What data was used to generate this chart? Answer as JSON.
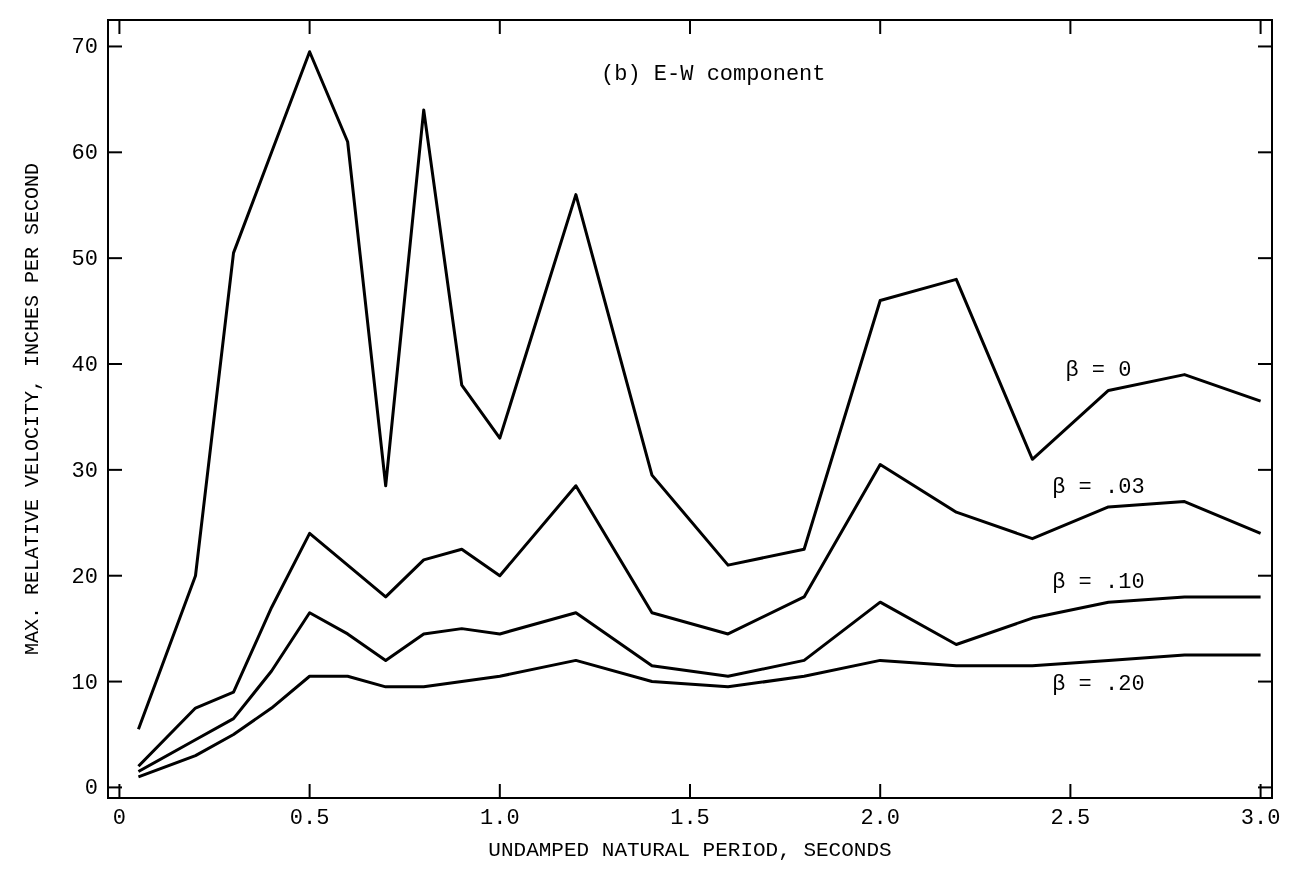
{
  "chart_data": {
    "type": "line",
    "xlabel": "UNDAMPED NATURAL PERIOD, SECONDS",
    "ylabel": "MAX. RELATIVE VELOCITY, INCHES PER SECOND",
    "annotations": [
      "(b) E-W component"
    ],
    "x": [
      0.05,
      0.2,
      0.3,
      0.4,
      0.5,
      0.6,
      0.7,
      0.8,
      0.9,
      1.0,
      1.2,
      1.4,
      1.6,
      1.8,
      2.0,
      2.2,
      2.4,
      2.6,
      2.8,
      3.0
    ],
    "xlim": [
      -0.03,
      3.03
    ],
    "xticks": [
      0,
      0.5,
      {
        "value": 1,
        "label": "1.0"
      },
      1.5,
      {
        "value": 2,
        "label": "2.0"
      },
      2.5,
      {
        "value": 3,
        "label": "3.0"
      }
    ],
    "ylim": [
      -1,
      72.5
    ],
    "yticks": [
      0,
      10,
      20,
      30,
      40,
      50,
      60,
      70
    ],
    "grid": false,
    "marker": "none",
    "line_style": "solid",
    "series": [
      {
        "name": "β = 0",
        "color": "#000000",
        "values": [
          5.5,
          20,
          50.5,
          60,
          69.5,
          61,
          28.5,
          64,
          38,
          33,
          56,
          29.5,
          21,
          22.5,
          46,
          48,
          31,
          37.5,
          39,
          36.5
        ]
      },
      {
        "name": "β = .03",
        "color": "#000000",
        "values": [
          2,
          7.5,
          9,
          17,
          24,
          21,
          18,
          21.5,
          22.5,
          20,
          28.5,
          16.5,
          14.5,
          18,
          30.5,
          26,
          23.5,
          26.5,
          27,
          24
        ]
      },
      {
        "name": "β = .10",
        "color": "#000000",
        "values": [
          1.5,
          4.5,
          6.5,
          11,
          16.5,
          14.5,
          12,
          14.5,
          15,
          14.5,
          16.5,
          11.5,
          10.5,
          12,
          17.5,
          13.5,
          16,
          17.5,
          18,
          18
        ]
      },
      {
        "name": "β = .20",
        "color": "#000000",
        "values": [
          1,
          3,
          5,
          7.5,
          10.5,
          10.5,
          9.5,
          9.5,
          10,
          10.5,
          12,
          10,
          9.5,
          10.5,
          12,
          11.5,
          11.5,
          12,
          12.5,
          12.5
        ]
      }
    ]
  }
}
